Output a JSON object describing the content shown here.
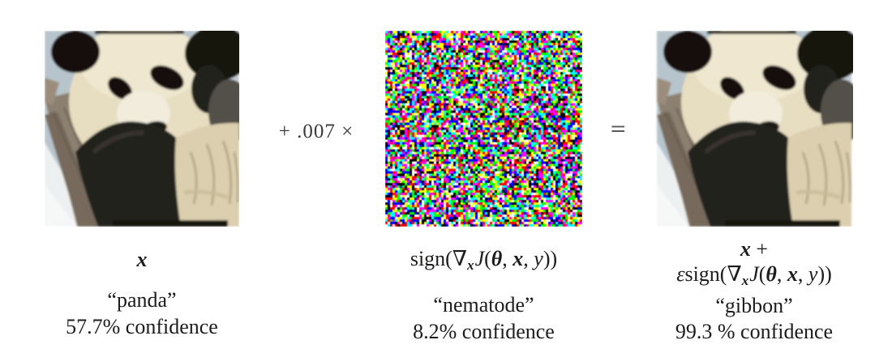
{
  "colors": {
    "background": "#ffffff",
    "label_text": "#1d1c1b",
    "operator_text": "#3b3b3b"
  },
  "operators": {
    "plus_scalar": "+ .007 ×",
    "equals": "="
  },
  "panels": {
    "original": {
      "image": "panda-photo",
      "math": [
        {
          "t": "x",
          "s": "bi"
        }
      ],
      "class_label": "“panda”",
      "confidence": "57.7% confidence"
    },
    "perturbation": {
      "image": "rgb-sign-noise",
      "math": [
        {
          "t": "sign(",
          "s": "up"
        },
        {
          "t": "∇",
          "s": "up"
        },
        {
          "t": "x",
          "s": "sub"
        },
        {
          "t": "J",
          "s": "it"
        },
        {
          "t": "(",
          "s": "up"
        },
        {
          "t": "θ",
          "s": "bi"
        },
        {
          "t": ", ",
          "s": "up"
        },
        {
          "t": "x",
          "s": "bi"
        },
        {
          "t": ", ",
          "s": "up"
        },
        {
          "t": "y",
          "s": "it"
        },
        {
          "t": "))",
          "s": "up"
        }
      ],
      "class_label": "“nematode”",
      "confidence": "8.2% confidence"
    },
    "adversarial": {
      "image": "panda-photo-perturbed",
      "math_line1": [
        {
          "t": "x",
          "s": "bi"
        },
        {
          "t": " +",
          "s": "up"
        }
      ],
      "math_line2": [
        {
          "t": "ε",
          "s": "it"
        },
        {
          "t": "sign(",
          "s": "up"
        },
        {
          "t": "∇",
          "s": "up"
        },
        {
          "t": "x",
          "s": "sub"
        },
        {
          "t": "J",
          "s": "it"
        },
        {
          "t": "(",
          "s": "up"
        },
        {
          "t": "θ",
          "s": "bi"
        },
        {
          "t": ", ",
          "s": "up"
        },
        {
          "t": "x",
          "s": "bi"
        },
        {
          "t": ", ",
          "s": "up"
        },
        {
          "t": "y",
          "s": "it"
        },
        {
          "t": "))",
          "s": "up"
        }
      ],
      "class_label": "“gibbon”",
      "confidence": "99.3 % confidence"
    }
  }
}
